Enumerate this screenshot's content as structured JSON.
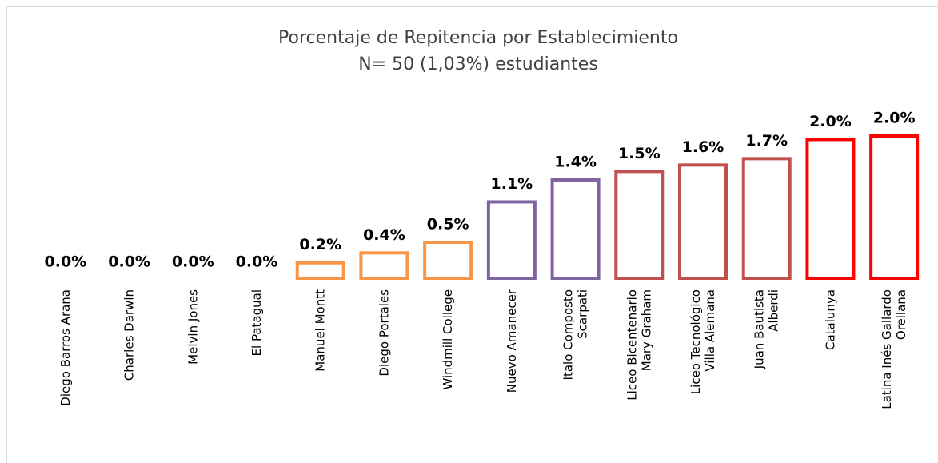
{
  "chart_data": {
    "type": "bar",
    "title": "Porcentaje de Repitencia por Establecimiento",
    "subtitle": "N= 50 (1,03%) estudiantes",
    "categories": [
      "Diego Barros Arana",
      "Charles Darwin",
      "Melvin Jones",
      "El Patagual",
      "Manuel Montt",
      "Diego Portales",
      "Windmill College",
      "Nuevo Amanecer",
      "Italo Composto\nScarpati",
      "Liceo Bicentenario\nMary Graham",
      "Liceo Tecnológico\nVilla Alemana",
      "Juan Bautista\nAlberdi",
      "Catalunya",
      "Latina Inés Gallardo\nOrellana"
    ],
    "values": [
      0,
      0,
      0,
      0,
      0.24,
      0.38,
      0.53,
      1.1,
      1.41,
      1.53,
      1.62,
      1.71,
      1.98,
      2.03
    ],
    "value_labels": [
      "0.0%",
      "0.0%",
      "0.0%",
      "0.0%",
      "0.2%",
      "0.4%",
      "0.5%",
      "1.1%",
      "1.4%",
      "1.5%",
      "1.6%",
      "1.7%",
      "2.0%",
      "2.0%"
    ],
    "colors": [
      "#f79646",
      "#f79646",
      "#f79646",
      "#f79646",
      "#f79646",
      "#f79646",
      "#f79646",
      "#8064a2",
      "#8064a2",
      "#c0504d",
      "#c0504d",
      "#c0504d",
      "#ff0000",
      "#ff0000"
    ]
  }
}
